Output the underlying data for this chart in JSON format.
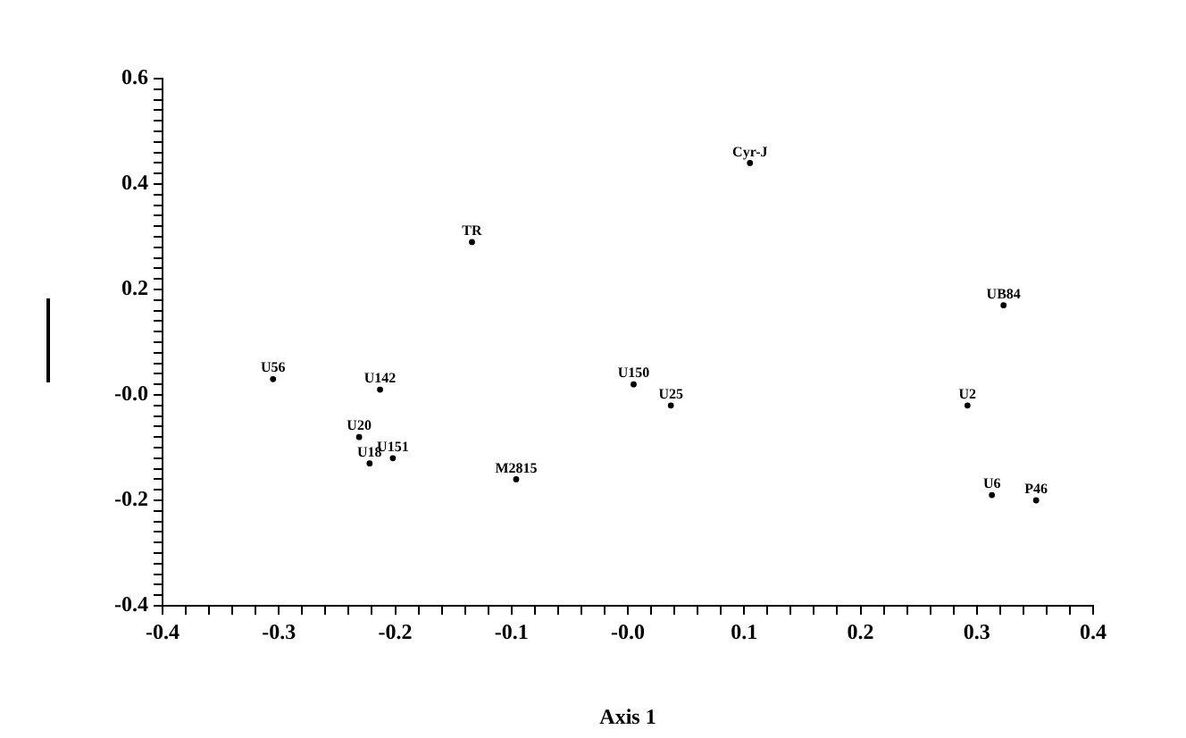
{
  "chart_data": {
    "type": "scatter",
    "xlabel": "Axis 1",
    "marker": "circle",
    "grid": false,
    "legend": false,
    "xlim": [
      -0.4,
      0.4
    ],
    "ylim": [
      -0.4,
      0.6
    ],
    "xticks": [
      -0.4,
      {
        "value": -0.38,
        "label": null
      },
      {
        "value": -0.36,
        "label": null
      },
      {
        "value": -0.34,
        "label": null
      },
      {
        "value": -0.32,
        "label": null
      },
      -0.3,
      {
        "value": -0.28,
        "label": null
      },
      {
        "value": -0.26,
        "label": null
      },
      {
        "value": -0.24,
        "label": null
      },
      {
        "value": -0.22,
        "label": null
      },
      -0.2,
      {
        "value": -0.18,
        "label": null
      },
      {
        "value": -0.16,
        "label": null
      },
      {
        "value": -0.14,
        "label": null
      },
      {
        "value": -0.12,
        "label": null
      },
      -0.1,
      {
        "value": -0.08,
        "label": null
      },
      {
        "value": -0.06,
        "label": null
      },
      {
        "value": -0.04,
        "label": null
      },
      {
        "value": -0.02,
        "label": null
      },
      {
        "value": 0,
        "label": "-0.0"
      },
      {
        "value": 0.02,
        "label": null
      },
      {
        "value": 0.04,
        "label": null
      },
      {
        "value": 0.06,
        "label": null
      },
      {
        "value": 0.08,
        "label": null
      },
      0.1,
      {
        "value": 0.12,
        "label": null
      },
      {
        "value": 0.14,
        "label": null
      },
      {
        "value": 0.16,
        "label": null
      },
      {
        "value": 0.18,
        "label": null
      },
      0.2,
      {
        "value": 0.22,
        "label": null
      },
      {
        "value": 0.24,
        "label": null
      },
      {
        "value": 0.26,
        "label": null
      },
      {
        "value": 0.28,
        "label": null
      },
      0.3,
      {
        "value": 0.32,
        "label": null
      },
      {
        "value": 0.34,
        "label": null
      },
      {
        "value": 0.36,
        "label": null
      },
      {
        "value": 0.38,
        "label": null
      },
      0.4
    ],
    "yticks": [
      -0.4,
      {
        "value": -0.38,
        "label": null
      },
      {
        "value": -0.36,
        "label": null
      },
      {
        "value": -0.34,
        "label": null
      },
      {
        "value": -0.32,
        "label": null
      },
      {
        "value": -0.3,
        "label": null
      },
      {
        "value": -0.28,
        "label": null
      },
      {
        "value": -0.26,
        "label": null
      },
      {
        "value": -0.24,
        "label": null
      },
      {
        "value": -0.22,
        "label": null
      },
      -0.2,
      {
        "value": -0.18,
        "label": null
      },
      {
        "value": -0.16,
        "label": null
      },
      {
        "value": -0.14,
        "label": null
      },
      {
        "value": -0.12,
        "label": null
      },
      {
        "value": -0.1,
        "label": null
      },
      {
        "value": -0.08,
        "label": null
      },
      {
        "value": -0.06,
        "label": null
      },
      {
        "value": -0.04,
        "label": null
      },
      {
        "value": -0.02,
        "label": null
      },
      {
        "value": 0,
        "label": "-0.0"
      },
      {
        "value": 0.02,
        "label": null
      },
      {
        "value": 0.04,
        "label": null
      },
      {
        "value": 0.06,
        "label": null
      },
      {
        "value": 0.08,
        "label": null
      },
      {
        "value": 0.1,
        "label": null
      },
      {
        "value": 0.12,
        "label": null
      },
      {
        "value": 0.14,
        "label": null
      },
      {
        "value": 0.16,
        "label": null
      },
      {
        "value": 0.18,
        "label": null
      },
      0.2,
      {
        "value": 0.22,
        "label": null
      },
      {
        "value": 0.24,
        "label": null
      },
      {
        "value": 0.26,
        "label": null
      },
      {
        "value": 0.28,
        "label": null
      },
      {
        "value": 0.3,
        "label": null
      },
      {
        "value": 0.32,
        "label": null
      },
      {
        "value": 0.34,
        "label": null
      },
      {
        "value": 0.36,
        "label": null
      },
      {
        "value": 0.38,
        "label": null
      },
      0.4,
      {
        "value": 0.42,
        "label": null
      },
      {
        "value": 0.44,
        "label": null
      },
      {
        "value": 0.46,
        "label": null
      },
      {
        "value": 0.48,
        "label": null
      },
      {
        "value": 0.5,
        "label": null
      },
      {
        "value": 0.52,
        "label": null
      },
      {
        "value": 0.54,
        "label": null
      },
      {
        "value": 0.56,
        "label": null
      },
      {
        "value": 0.58,
        "label": null
      },
      0.6
    ],
    "series": [
      {
        "color": "#000000",
        "x": [
          0.105,
          -0.134,
          0.323,
          -0.305,
          -0.213,
          0.005,
          0.037,
          0.292,
          -0.231,
          -0.222,
          -0.202,
          -0.096,
          0.313,
          0.351
        ],
        "values": [
          0.44,
          0.29,
          0.17,
          0.03,
          0.01,
          0.02,
          -0.02,
          -0.02,
          -0.08,
          -0.13,
          -0.12,
          -0.16,
          -0.19,
          -0.2
        ],
        "value_labels": [
          "Cyr-J",
          "TR",
          "UB84",
          "U56",
          "U142",
          "U150",
          "U25",
          "U2",
          "U20",
          "U18",
          "U151",
          "M2815",
          "U6",
          "P46"
        ]
      }
    ]
  }
}
